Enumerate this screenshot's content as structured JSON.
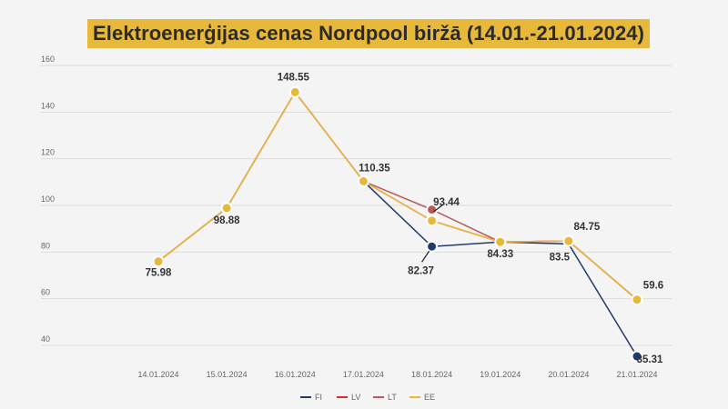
{
  "title": "Elektroenerģijas cenas Nordpool biržā (14.01.-21.01.2024)",
  "chart_data": {
    "type": "line",
    "title": "Elektroenerģijas cenas Nordpool biržā (14.01.-21.01.2024)",
    "categories": [
      "14.01.2024",
      "15.01.2024",
      "16.01.2024",
      "17.01.2024",
      "18.01.2024",
      "19.01.2024",
      "20.01.2024",
      "21.01.2024"
    ],
    "yticks": [
      40,
      60,
      80,
      100,
      120,
      140,
      160
    ],
    "ylim": [
      30,
      160
    ],
    "grid": true,
    "legend": "bottom",
    "series": [
      {
        "name": "FI",
        "color": "#1f3a6e",
        "values": [
          null,
          null,
          null,
          110.35,
          82.37,
          84.33,
          83.5,
          35.31
        ]
      },
      {
        "name": "LV",
        "color": "#d62b2b",
        "values": [
          75.98,
          98.88,
          148.55,
          110.35,
          93.44,
          84.33,
          84.75,
          59.6
        ]
      },
      {
        "name": "LT",
        "color": "#b85a5a",
        "values": [
          75.98,
          98.88,
          148.55,
          110.35,
          98.2,
          84.33,
          84.75,
          59.6
        ]
      },
      {
        "name": "EE",
        "color": "#e8b83a",
        "values": [
          75.98,
          98.88,
          148.55,
          110.35,
          93.44,
          84.33,
          84.75,
          59.6
        ]
      }
    ],
    "data_labels": [
      {
        "category": 0,
        "value": 75.98,
        "text": "75.98"
      },
      {
        "category": 1,
        "value": 98.88,
        "text": "98.88"
      },
      {
        "category": 2,
        "value": 148.55,
        "text": "148.55"
      },
      {
        "category": 3,
        "value": 110.35,
        "text": "110.35"
      },
      {
        "category": 4,
        "value": 93.44,
        "text": "93.44"
      },
      {
        "category": 4,
        "value": 82.37,
        "text": "82.37"
      },
      {
        "category": 5,
        "value": 84.33,
        "text": "84.33"
      },
      {
        "category": 6,
        "value": 83.5,
        "text": "83.5"
      },
      {
        "category": 6,
        "value": 84.75,
        "text": "84.75"
      },
      {
        "category": 7,
        "value": 59.6,
        "text": "59.6"
      },
      {
        "category": 7,
        "value": 35.31,
        "text": "35.31"
      }
    ]
  }
}
